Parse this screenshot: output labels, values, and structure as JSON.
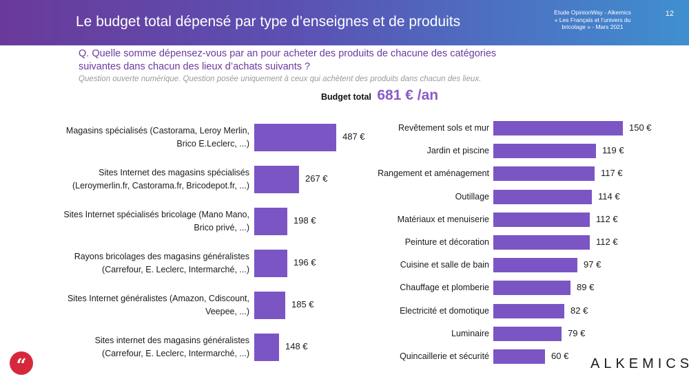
{
  "header": {
    "title": "Le budget total dépensé par type d’enseignes et de produits",
    "study_lines": [
      "Etude OpinionWay - Alkemics",
      "« Les Français et l’univers du",
      "bricolage » - Mars 2021"
    ],
    "page_number": "12"
  },
  "question": {
    "text_lines": [
      "Q. Quelle somme dépensez-vous par an pour acheter des produits de chacune des catégories",
      "suivantes dans chacun des lieux d’achats suivants ?"
    ],
    "note": "Question ouverte numérique. Question posée uniquement à ceux qui achètent des produits dans chacun des lieux."
  },
  "budget": {
    "label": "Budget total",
    "value": "681 € /an"
  },
  "logo": {
    "text": "ALKEMICS"
  },
  "icons": {
    "quote": "quote-icon"
  },
  "colors": {
    "bar": "#7b55c4",
    "accent": "#8a5bc6",
    "question": "#6a3b9e",
    "quote_badge": "#d6283c"
  },
  "chart_data": [
    {
      "type": "bar",
      "orientation": "horizontal",
      "categories": [
        [
          "Magasins spécialisés (Castorama, Leroy Merlin,",
          "Brico E.Leclerc, ...)"
        ],
        [
          "Sites Internet des magasins spécialisés",
          "(Leroymerlin.fr, Castorama.fr, Bricodepot.fr,  ...)"
        ],
        [
          "Sites Internet spécialisés bricolage (Mano Mano,",
          "Brico privé, ...)"
        ],
        [
          "Rayons bricolages des magasins généralistes",
          "(Carrefour, E. Leclerc, Intermarché, ...)"
        ],
        [
          "Sites Internet généralistes (Amazon, Cdiscount,",
          "Veepee, ...)"
        ],
        [
          "Sites internet des magasins généralistes",
          "(Carrefour, E. Leclerc, Intermarché, ...)"
        ]
      ],
      "values": [
        487,
        267,
        198,
        196,
        185,
        148
      ],
      "value_labels": [
        "487 €",
        "267 €",
        "198 €",
        "196 €",
        "185 €",
        "148 €"
      ],
      "unit": "€"
    },
    {
      "type": "bar",
      "orientation": "horizontal",
      "categories": [
        "Revêtement sols et mur",
        "Jardin et piscine",
        "Rangement et aménagement",
        "Outillage",
        "Matériaux et menuiserie",
        "Peinture et décoration",
        "Cuisine et salle de bain",
        "Chauffage et plomberie",
        "Electricité et domotique",
        "Luminaire",
        "Quincaillerie et sécurité"
      ],
      "values": [
        150,
        119,
        117,
        114,
        112,
        112,
        97,
        89,
        82,
        79,
        60
      ],
      "value_labels": [
        "150 €",
        "119 €",
        "117 €",
        "114 €",
        "112 €",
        "112 €",
        "97 €",
        "89 €",
        "82 €",
        "79 €",
        "60 €"
      ],
      "unit": "€"
    }
  ]
}
